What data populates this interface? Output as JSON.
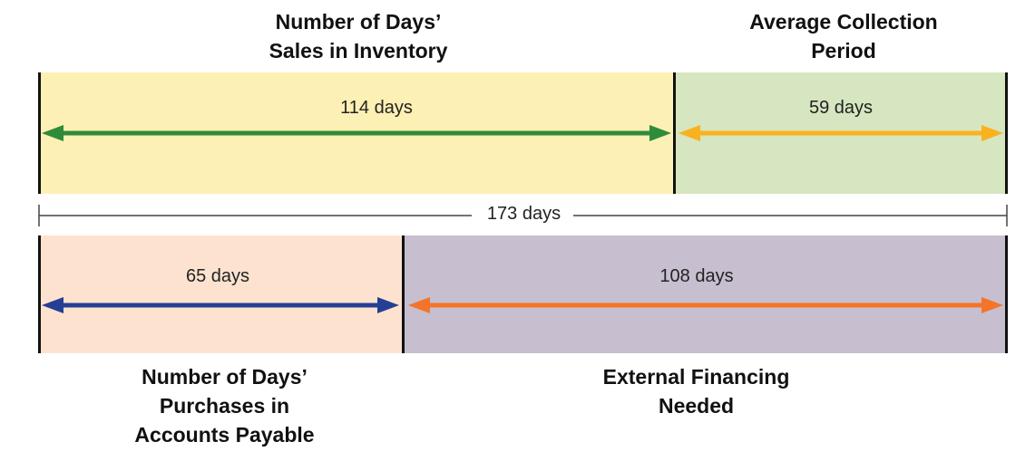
{
  "top_headings": {
    "inventory": [
      "Number of Days’",
      "Sales in Inventory"
    ],
    "collection": [
      "Average Collection",
      "Period"
    ]
  },
  "bottom_headings": {
    "payable": [
      "Number of Days’",
      "Purchases in",
      "Accounts Payable"
    ],
    "financing": [
      "External Financing",
      "Needed"
    ]
  },
  "segments": {
    "inventory": {
      "days": 114,
      "label": "114 days",
      "color": "#fdf0b4",
      "arrow_color": "#2e8b3a"
    },
    "collection": {
      "days": 59,
      "label": "59 days",
      "color": "#d6e6c0",
      "arrow_color": "#f9b21e"
    },
    "payable": {
      "days": 65,
      "label": "65 days",
      "color": "#fde3cf",
      "arrow_color": "#253f94"
    },
    "financing": {
      "days": 108,
      "label": "108 days",
      "color": "#c7bed0",
      "arrow_color": "#f47529"
    }
  },
  "total": {
    "days": 173,
    "label": "173 days"
  }
}
